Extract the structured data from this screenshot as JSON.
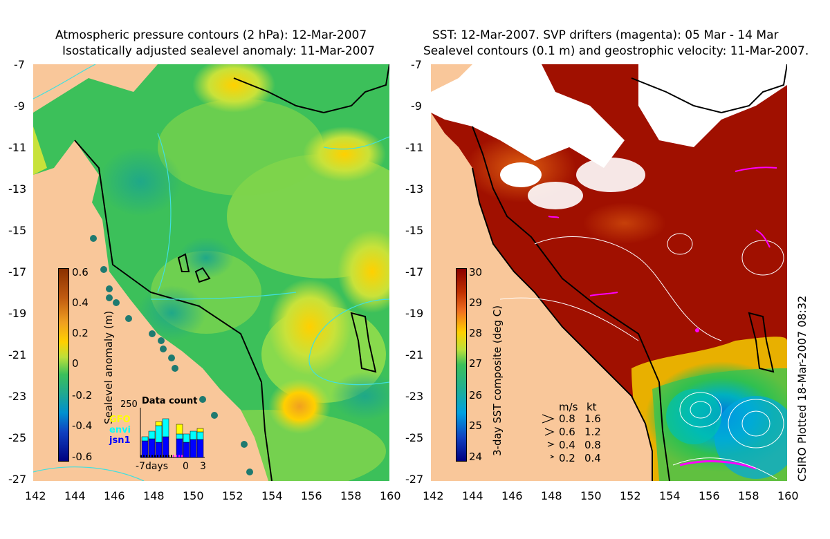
{
  "left_panel": {
    "title_line1": "Atmospheric pressure contours (2 hPa): 12-Mar-2007",
    "title_line2": "Isostatically adjusted sealevel anomaly: 11-Mar-2007",
    "colorbar_label": "Sealevel anomaly (m)",
    "colorbar_ticks": [
      "0.6",
      "0.4",
      "0.2",
      "0",
      "-0.2",
      "-0.4",
      "-0.6"
    ],
    "inset": {
      "title": "Data count",
      "ymax_label": "250",
      "x_labels": [
        "-7days",
        "0",
        "3"
      ],
      "satellites": [
        {
          "name": "GFO",
          "color": "#ffff00"
        },
        {
          "name": "envi",
          "color": "#00ffff"
        },
        {
          "name": "jsn1",
          "color": "#0000ff"
        }
      ]
    }
  },
  "right_panel": {
    "title_line1": "SST: 12-Mar-2007. SVP drifters (magenta): 05 Mar - 14 Mar",
    "title_line2": "Sealevel contours (0.1 m) and geostrophic velocity: 11-Mar-2007.",
    "colorbar_label": "3-day SST composite (deg C)",
    "colorbar_ticks": [
      "30",
      "29",
      "28",
      "27",
      "26",
      "25",
      "24"
    ],
    "velocity_legend": {
      "header_ms": "m/s",
      "header_kt": "kt",
      "rows": [
        {
          "ms": "0.8",
          "kt": "1.6"
        },
        {
          "ms": "0.6",
          "kt": "1.2"
        },
        {
          "ms": "0.4",
          "kt": "0.8"
        },
        {
          "ms": "0.2",
          "kt": "0.4"
        }
      ]
    }
  },
  "y_ticks": [
    "-7",
    "-9",
    "-11",
    "-13",
    "-15",
    "-17",
    "-19",
    "-21",
    "-23",
    "-25",
    "-27"
  ],
  "x_ticks": [
    "142",
    "144",
    "146",
    "148",
    "150",
    "152",
    "154",
    "156",
    "158",
    "160"
  ],
  "plotted_label": "CSIRO Plotted 18-Mar-2007 08:32",
  "chart_data": {
    "type": "heatmap",
    "x_range": [
      142,
      160
    ],
    "y_range": [
      -27,
      -7
    ],
    "colors": {
      "land": "#f9c79a",
      "cloud": "#ffffff",
      "coastline": "#000000",
      "drifter": "#ff00ff",
      "pressure_contour": "#40e0e0"
    }
  }
}
